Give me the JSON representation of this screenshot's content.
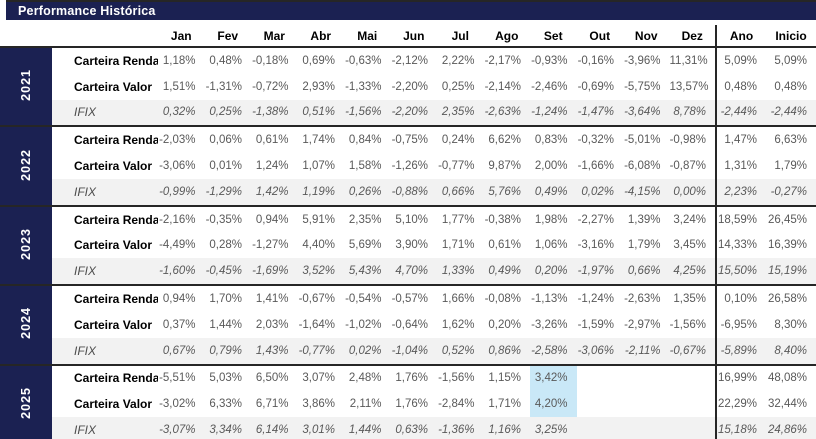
{
  "colors": {
    "navy": "#1b2152",
    "line": "#262626",
    "bottom_line": "#9b9b9b",
    "row_alt": "#f2f2f2",
    "highlight": "#c9e8f7",
    "value_text": "#595959"
  },
  "chart_data": {
    "type": "table",
    "title": "Performance Histórica",
    "month_columns": [
      "Jan",
      "Fev",
      "Mar",
      "Abr",
      "Mai",
      "Jun",
      "Jul",
      "Ago",
      "Set",
      "Out",
      "Nov",
      "Dez"
    ],
    "summary_columns": [
      "Ano",
      "Inicio"
    ],
    "groups": [
      {
        "year": "2021",
        "rows": [
          {
            "label": "Carteira Renda",
            "values": [
              "1,18%",
              "0,48%",
              "-0,18%",
              "0,69%",
              "-0,63%",
              "-2,12%",
              "2,22%",
              "-2,17%",
              "-0,93%",
              "-0,16%",
              "-3,96%",
              "11,31%"
            ],
            "ano": "5,09%",
            "inicio": "5,09%"
          },
          {
            "label": "Carteira Valor",
            "values": [
              "1,51%",
              "-1,31%",
              "-0,72%",
              "2,93%",
              "-1,33%",
              "-2,20%",
              "0,25%",
              "-2,14%",
              "-2,46%",
              "-0,69%",
              "-5,75%",
              "13,57%"
            ],
            "ano": "0,48%",
            "inicio": "0,48%"
          },
          {
            "label": "IFIX",
            "values": [
              "0,32%",
              "0,25%",
              "-1,38%",
              "0,51%",
              "-1,56%",
              "-2,20%",
              "2,35%",
              "-2,63%",
              "-1,24%",
              "-1,47%",
              "-3,64%",
              "8,78%"
            ],
            "ano": "-2,44%",
            "inicio": "-2,44%"
          }
        ]
      },
      {
        "year": "2022",
        "rows": [
          {
            "label": "Carteira Renda",
            "values": [
              "-2,03%",
              "0,06%",
              "0,61%",
              "1,74%",
              "0,84%",
              "-0,75%",
              "0,24%",
              "6,62%",
              "0,83%",
              "-0,32%",
              "-5,01%",
              "-0,98%"
            ],
            "ano": "1,47%",
            "inicio": "6,63%"
          },
          {
            "label": "Carteira Valor",
            "values": [
              "-3,06%",
              "0,01%",
              "1,24%",
              "1,07%",
              "1,58%",
              "-1,26%",
              "-0,77%",
              "9,87%",
              "2,00%",
              "-1,66%",
              "-6,08%",
              "-0,87%"
            ],
            "ano": "1,31%",
            "inicio": "1,79%"
          },
          {
            "label": "IFIX",
            "values": [
              "-0,99%",
              "-1,29%",
              "1,42%",
              "1,19%",
              "0,26%",
              "-0,88%",
              "0,66%",
              "5,76%",
              "0,49%",
              "0,02%",
              "-4,15%",
              "0,00%"
            ],
            "ano": "2,23%",
            "inicio": "-0,27%"
          }
        ]
      },
      {
        "year": "2023",
        "rows": [
          {
            "label": "Carteira Renda",
            "values": [
              "-2,16%",
              "-0,35%",
              "0,94%",
              "5,91%",
              "2,35%",
              "5,10%",
              "1,77%",
              "-0,38%",
              "1,98%",
              "-2,27%",
              "1,39%",
              "3,24%"
            ],
            "ano": "18,59%",
            "inicio": "26,45%"
          },
          {
            "label": "Carteira Valor",
            "values": [
              "-4,49%",
              "0,28%",
              "-1,27%",
              "4,40%",
              "5,69%",
              "3,90%",
              "1,71%",
              "0,61%",
              "1,06%",
              "-3,16%",
              "1,79%",
              "3,45%"
            ],
            "ano": "14,33%",
            "inicio": "16,39%"
          },
          {
            "label": "IFIX",
            "values": [
              "-1,60%",
              "-0,45%",
              "-1,69%",
              "3,52%",
              "5,43%",
              "4,70%",
              "1,33%",
              "0,49%",
              "0,20%",
              "-1,97%",
              "0,66%",
              "4,25%"
            ],
            "ano": "15,50%",
            "inicio": "15,19%"
          }
        ]
      },
      {
        "year": "2024",
        "rows": [
          {
            "label": "Carteira Renda",
            "values": [
              "0,94%",
              "1,70%",
              "1,41%",
              "-0,67%",
              "-0,54%",
              "-0,57%",
              "1,66%",
              "-0,08%",
              "-1,13%",
              "-1,24%",
              "-2,63%",
              "1,35%"
            ],
            "ano": "0,10%",
            "inicio": "26,58%"
          },
          {
            "label": "Carteira Valor",
            "values": [
              "0,37%",
              "1,44%",
              "2,03%",
              "-1,64%",
              "-1,02%",
              "-0,64%",
              "1,62%",
              "0,20%",
              "-3,26%",
              "-1,59%",
              "-2,97%",
              "-1,56%"
            ],
            "ano": "-6,95%",
            "inicio": "8,30%"
          },
          {
            "label": "IFIX",
            "values": [
              "0,67%",
              "0,79%",
              "1,43%",
              "-0,77%",
              "0,02%",
              "-1,04%",
              "0,52%",
              "0,86%",
              "-2,58%",
              "-3,06%",
              "-2,11%",
              "-0,67%"
            ],
            "ano": "-5,89%",
            "inicio": "8,40%"
          }
        ]
      },
      {
        "year": "2025",
        "rows": [
          {
            "label": "Carteira Renda",
            "values": [
              "-5,51%",
              "5,03%",
              "6,50%",
              "3,07%",
              "2,48%",
              "1,76%",
              "-1,56%",
              "1,15%",
              "3,42%",
              "",
              "",
              ""
            ],
            "ano": "16,99%",
            "inicio": "48,08%",
            "highlight": [
              8
            ]
          },
          {
            "label": "Carteira Valor",
            "values": [
              "-3,02%",
              "6,33%",
              "6,71%",
              "3,86%",
              "2,11%",
              "1,76%",
              "-2,84%",
              "1,71%",
              "4,20%",
              "",
              "",
              ""
            ],
            "ano": "22,29%",
            "inicio": "32,44%",
            "highlight": [
              8
            ]
          },
          {
            "label": "IFIX",
            "values": [
              "-3,07%",
              "3,34%",
              "6,14%",
              "3,01%",
              "1,44%",
              "0,63%",
              "-1,36%",
              "1,16%",
              "3,25%",
              "",
              "",
              ""
            ],
            "ano": "15,18%",
            "inicio": "24,86%"
          }
        ]
      }
    ]
  }
}
